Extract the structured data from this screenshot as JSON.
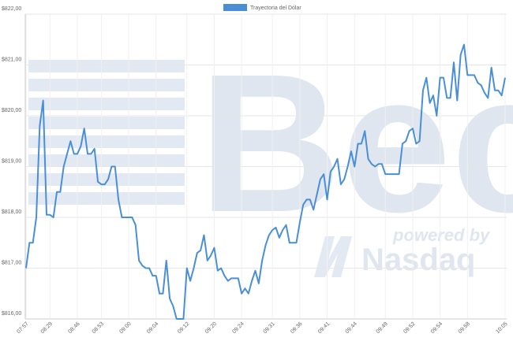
{
  "chart_data": {
    "type": "line",
    "legend_position": "top",
    "grid": true,
    "watermark": {
      "logo": "Bec",
      "tagline": "powered by",
      "brand": "Nasdaq"
    },
    "categories": [
      "07:57",
      null,
      null,
      null,
      null,
      null,
      null,
      "08:29",
      null,
      null,
      null,
      null,
      null,
      null,
      null,
      "08:46",
      null,
      null,
      null,
      null,
      null,
      null,
      "08:53",
      null,
      null,
      null,
      null,
      null,
      null,
      null,
      "09:00",
      null,
      null,
      null,
      null,
      null,
      null,
      null,
      "09:04",
      null,
      null,
      null,
      null,
      null,
      null,
      null,
      null,
      "09:12",
      null,
      null,
      null,
      null,
      null,
      null,
      null,
      "09:20",
      null,
      null,
      null,
      null,
      null,
      null,
      null,
      "09:24",
      null,
      null,
      null,
      null,
      null,
      null,
      null,
      null,
      "09:31",
      null,
      null,
      null,
      null,
      null,
      null,
      null,
      "09:36",
      null,
      null,
      null,
      null,
      null,
      null,
      null,
      "09:41",
      null,
      null,
      null,
      null,
      null,
      null,
      null,
      "09:44",
      null,
      null,
      null,
      null,
      null,
      null,
      null,
      null,
      "09:49",
      null,
      null,
      null,
      null,
      null,
      null,
      null,
      "09:52",
      null,
      null,
      null,
      null,
      null,
      null,
      null,
      "09:54",
      null,
      null,
      null,
      null,
      null,
      null,
      null,
      "09:58",
      null,
      null,
      null,
      null,
      null,
      null,
      null,
      null,
      null,
      null,
      "10:05"
    ],
    "series": [
      {
        "name": "Trayectoria del Dólar",
        "color": "#4a8fd6",
        "values": [
          817.0,
          817.5,
          817.5,
          818.0,
          819.8,
          820.3,
          818.05,
          818.05,
          818.0,
          818.5,
          818.5,
          819.0,
          819.25,
          819.5,
          819.25,
          819.25,
          819.4,
          819.75,
          819.25,
          819.25,
          819.35,
          818.7,
          818.65,
          818.65,
          818.75,
          819.0,
          819.0,
          818.35,
          818.0,
          818.0,
          818.0,
          818.0,
          817.85,
          817.15,
          817.05,
          817.0,
          817.0,
          816.85,
          816.85,
          816.5,
          816.5,
          817.15,
          816.4,
          816.25,
          816.0,
          816.0,
          816.0,
          817.0,
          816.75,
          817.0,
          817.3,
          817.35,
          817.65,
          817.15,
          817.25,
          817.4,
          816.95,
          817.0,
          816.85,
          816.75,
          816.8,
          816.8,
          816.8,
          816.5,
          816.6,
          816.5,
          816.75,
          816.95,
          816.7,
          817.15,
          817.45,
          817.65,
          817.75,
          817.8,
          817.6,
          817.75,
          817.85,
          817.5,
          817.5,
          817.5,
          817.9,
          818.25,
          818.35,
          818.35,
          818.15,
          818.45,
          818.75,
          818.85,
          818.35,
          818.9,
          819.0,
          819.15,
          818.65,
          818.75,
          819.0,
          819.3,
          819.0,
          819.45,
          819.45,
          819.7,
          819.15,
          819.05,
          819.0,
          819.05,
          819.05,
          818.85,
          818.85,
          818.85,
          818.85,
          818.85,
          819.45,
          819.5,
          819.7,
          819.75,
          819.45,
          819.5,
          820.5,
          820.75,
          820.25,
          820.4,
          820.0,
          820.75,
          820.75,
          820.35,
          820.35,
          821.05,
          820.3,
          821.2,
          821.4,
          820.8,
          820.8,
          820.8,
          820.65,
          820.6,
          820.45,
          820.35,
          820.95,
          820.5,
          820.5,
          820.4,
          820.75
        ]
      }
    ],
    "ylim": [
      816,
      822
    ],
    "yticks": [
      {
        "value": 816,
        "label": "$816,00"
      },
      {
        "value": 817,
        "label": "$817,00"
      },
      {
        "value": 818,
        "label": "$818,00"
      },
      {
        "value": 819,
        "label": "$819,00"
      },
      {
        "value": 820,
        "label": "$820,00"
      },
      {
        "value": 821,
        "label": "$821,00"
      },
      {
        "value": 822,
        "label": "$822,00"
      }
    ]
  }
}
